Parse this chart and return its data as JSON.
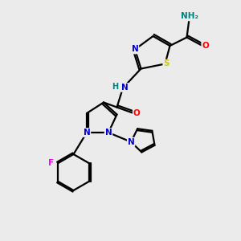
{
  "bg_color": "#ebebeb",
  "atom_colors": {
    "C": "#000000",
    "N": "#0000cc",
    "O": "#ff0000",
    "S": "#cccc00",
    "F": "#ff00ff",
    "H": "#008080"
  },
  "bond_color": "#000000",
  "bond_width": 1.6
}
